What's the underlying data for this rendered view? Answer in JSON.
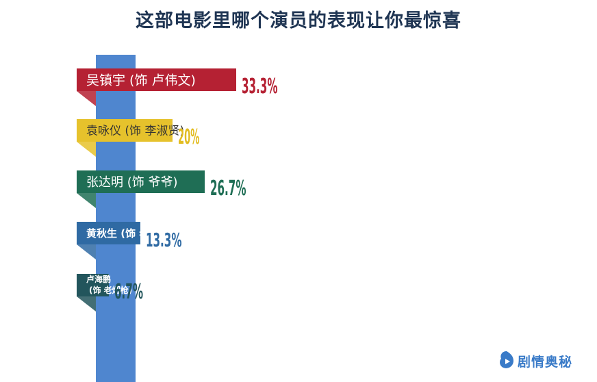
{
  "chart_data": {
    "type": "bar",
    "title": "这部电影里哪个演员的表现让你最惊喜",
    "categories": [
      "吴镇宇 (饰 卢伟文)",
      "袁咏仪 (饰 李淑贤)",
      "张达明 (饰 爷爷)",
      "黄秋生 (饰 老徐)",
      "卢海鹏 (饰 老烟枪)"
    ],
    "label_lines": [
      [
        "吴镇宇 (饰 卢伟文)"
      ],
      [
        "袁咏仪 (饰 李淑贤)"
      ],
      [
        "张达明 (饰 爷爷)"
      ],
      [
        "黄秋生 (饰 老徐)"
      ],
      [
        "卢海鹏",
        "(饰 老烟枪)"
      ]
    ],
    "values": [
      33.3,
      20,
      26.7,
      13.3,
      6.7
    ],
    "value_labels": [
      "33.3%",
      "20%",
      "26.7%",
      "13.3%",
      "6.7%"
    ],
    "colors": [
      "#b52133",
      "#e6c22c",
      "#1f6e55",
      "#2f6aa3",
      "#22555c"
    ],
    "label_text_colors": [
      "#ffffff",
      "#333333",
      "#ffffff",
      "#ffffff",
      "#ffffff"
    ]
  },
  "watermark": {
    "text": "剧情奥秘",
    "icon": "play-swirl-logo-icon",
    "color": "#3a7bc8"
  }
}
